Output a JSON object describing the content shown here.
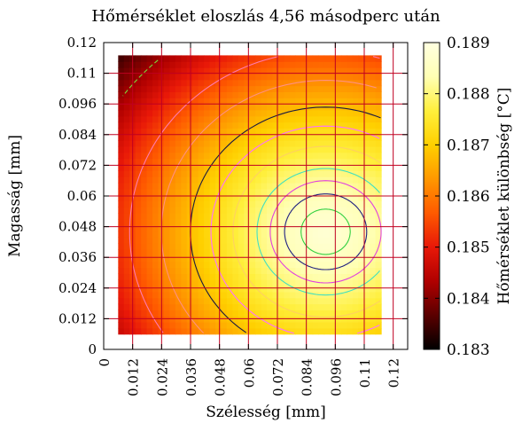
{
  "chart_data": {
    "type": "heatmap",
    "title": "Hőmérséklet eloszlás 4,56 másodperc után",
    "xlabel": "Szélesség [mm]",
    "ylabel": "Magasság [mm]",
    "colorbar_label": "Hőmérséklet különbség [°C]",
    "xlim": [
      0,
      0.126
    ],
    "ylim": [
      0,
      0.12
    ],
    "data_extent": {
      "x": [
        0.006,
        0.115
      ],
      "y": [
        0.006,
        0.115
      ]
    },
    "x_ticks": [
      {
        "value": 0,
        "label": "0"
      },
      {
        "value": 0.012,
        "label": "0.012"
      },
      {
        "value": 0.024,
        "label": "0.024"
      },
      {
        "value": 0.036,
        "label": "0.036"
      },
      {
        "value": 0.048,
        "label": "0.048"
      },
      {
        "value": 0.06,
        "label": "0.06"
      },
      {
        "value": 0.072,
        "label": "0.072"
      },
      {
        "value": 0.084,
        "label": "0.084"
      },
      {
        "value": 0.096,
        "label": "0.096"
      },
      {
        "value": 0.108,
        "label": "0.11"
      },
      {
        "value": 0.12,
        "label": "0.12"
      }
    ],
    "y_ticks": [
      {
        "value": 0,
        "label": "0"
      },
      {
        "value": 0.012,
        "label": "0.012"
      },
      {
        "value": 0.024,
        "label": "0.024"
      },
      {
        "value": 0.036,
        "label": "0.036"
      },
      {
        "value": 0.048,
        "label": "0.048"
      },
      {
        "value": 0.06,
        "label": "0.06"
      },
      {
        "value": 0.072,
        "label": "0.072"
      },
      {
        "value": 0.084,
        "label": "0.084"
      },
      {
        "value": 0.096,
        "label": "0.096"
      },
      {
        "value": 0.108,
        "label": "0.11"
      },
      {
        "value": 0.12,
        "label": "0.12"
      }
    ],
    "colorbar": {
      "range": [
        0.183,
        0.189
      ],
      "ticks": [
        {
          "value": 0.183,
          "label": "0.183"
        },
        {
          "value": 0.184,
          "label": "0.184"
        },
        {
          "value": 0.185,
          "label": "0.185"
        },
        {
          "value": 0.186,
          "label": "0.186"
        },
        {
          "value": 0.187,
          "label": "0.187"
        },
        {
          "value": 0.188,
          "label": "0.188"
        },
        {
          "value": 0.189,
          "label": "0.189"
        }
      ],
      "palette": [
        "#000000",
        "#5a0000",
        "#b00000",
        "#e81808",
        "#ff5a00",
        "#ff9800",
        "#ffd000",
        "#ffef3c",
        "#ffffb4",
        "#ffffe0"
      ]
    },
    "grid": true,
    "grid_color": "#c00020",
    "field_model": {
      "description_values": "temperature difference field, peak near the right-centre",
      "peak": {
        "x": 0.092,
        "y": 0.046,
        "value": 0.1888
      },
      "corner_min": {
        "x": 0.006,
        "y": 0.115,
        "value": 0.1834
      }
    },
    "contours": [
      {
        "level": 0.1842,
        "color": "#7cd63a",
        "dashed": true
      },
      {
        "level": 0.1855,
        "color": "#ff7ab0"
      },
      {
        "level": 0.1862,
        "color": "#ff9080"
      },
      {
        "level": 0.1868,
        "color": "#1a1a40"
      },
      {
        "level": 0.1872,
        "color": "#ff70ff"
      },
      {
        "level": 0.1876,
        "color": "#ffd060"
      },
      {
        "level": 0.188,
        "color": "#40e0c0"
      },
      {
        "level": 0.1882,
        "color": "#e040e0"
      },
      {
        "level": 0.1884,
        "color": "#202080"
      },
      {
        "level": 0.1886,
        "color": "#30d040"
      }
    ]
  }
}
